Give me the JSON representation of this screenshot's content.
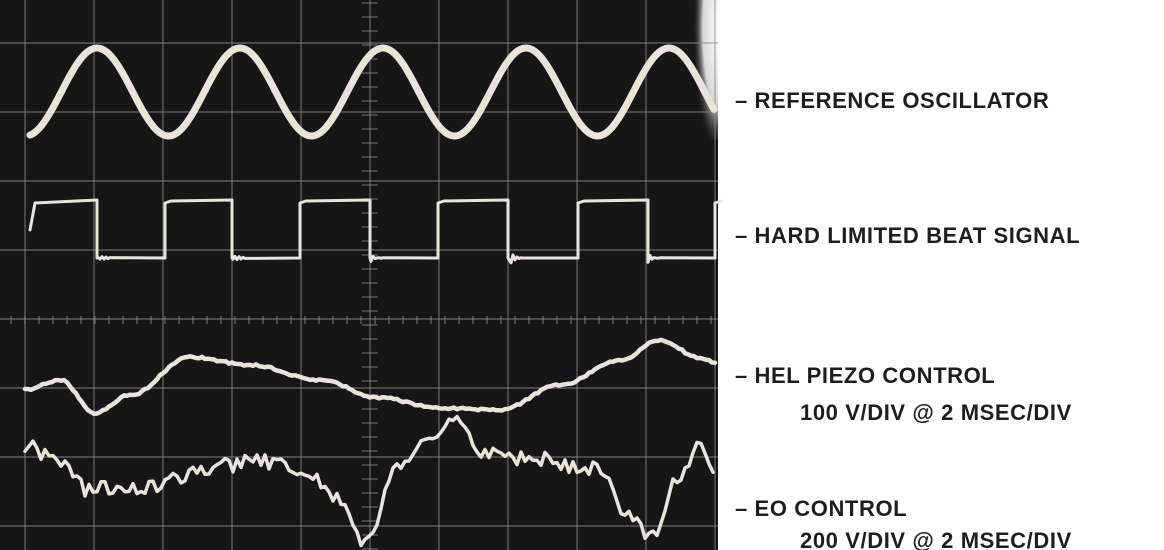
{
  "labels": [
    {
      "title": "– REFERENCE OSCILLATOR"
    },
    {
      "title": "– HARD LIMITED BEAT SIGNAL"
    },
    {
      "title": "– HEL PIEZO CONTROL",
      "subtitle": "100 V/DIV @ 2 MSEC/DIV"
    },
    {
      "title": "– EO CONTROL",
      "subtitle": "200 V/DIV @ 2 MSEC/DIV"
    }
  ]
}
